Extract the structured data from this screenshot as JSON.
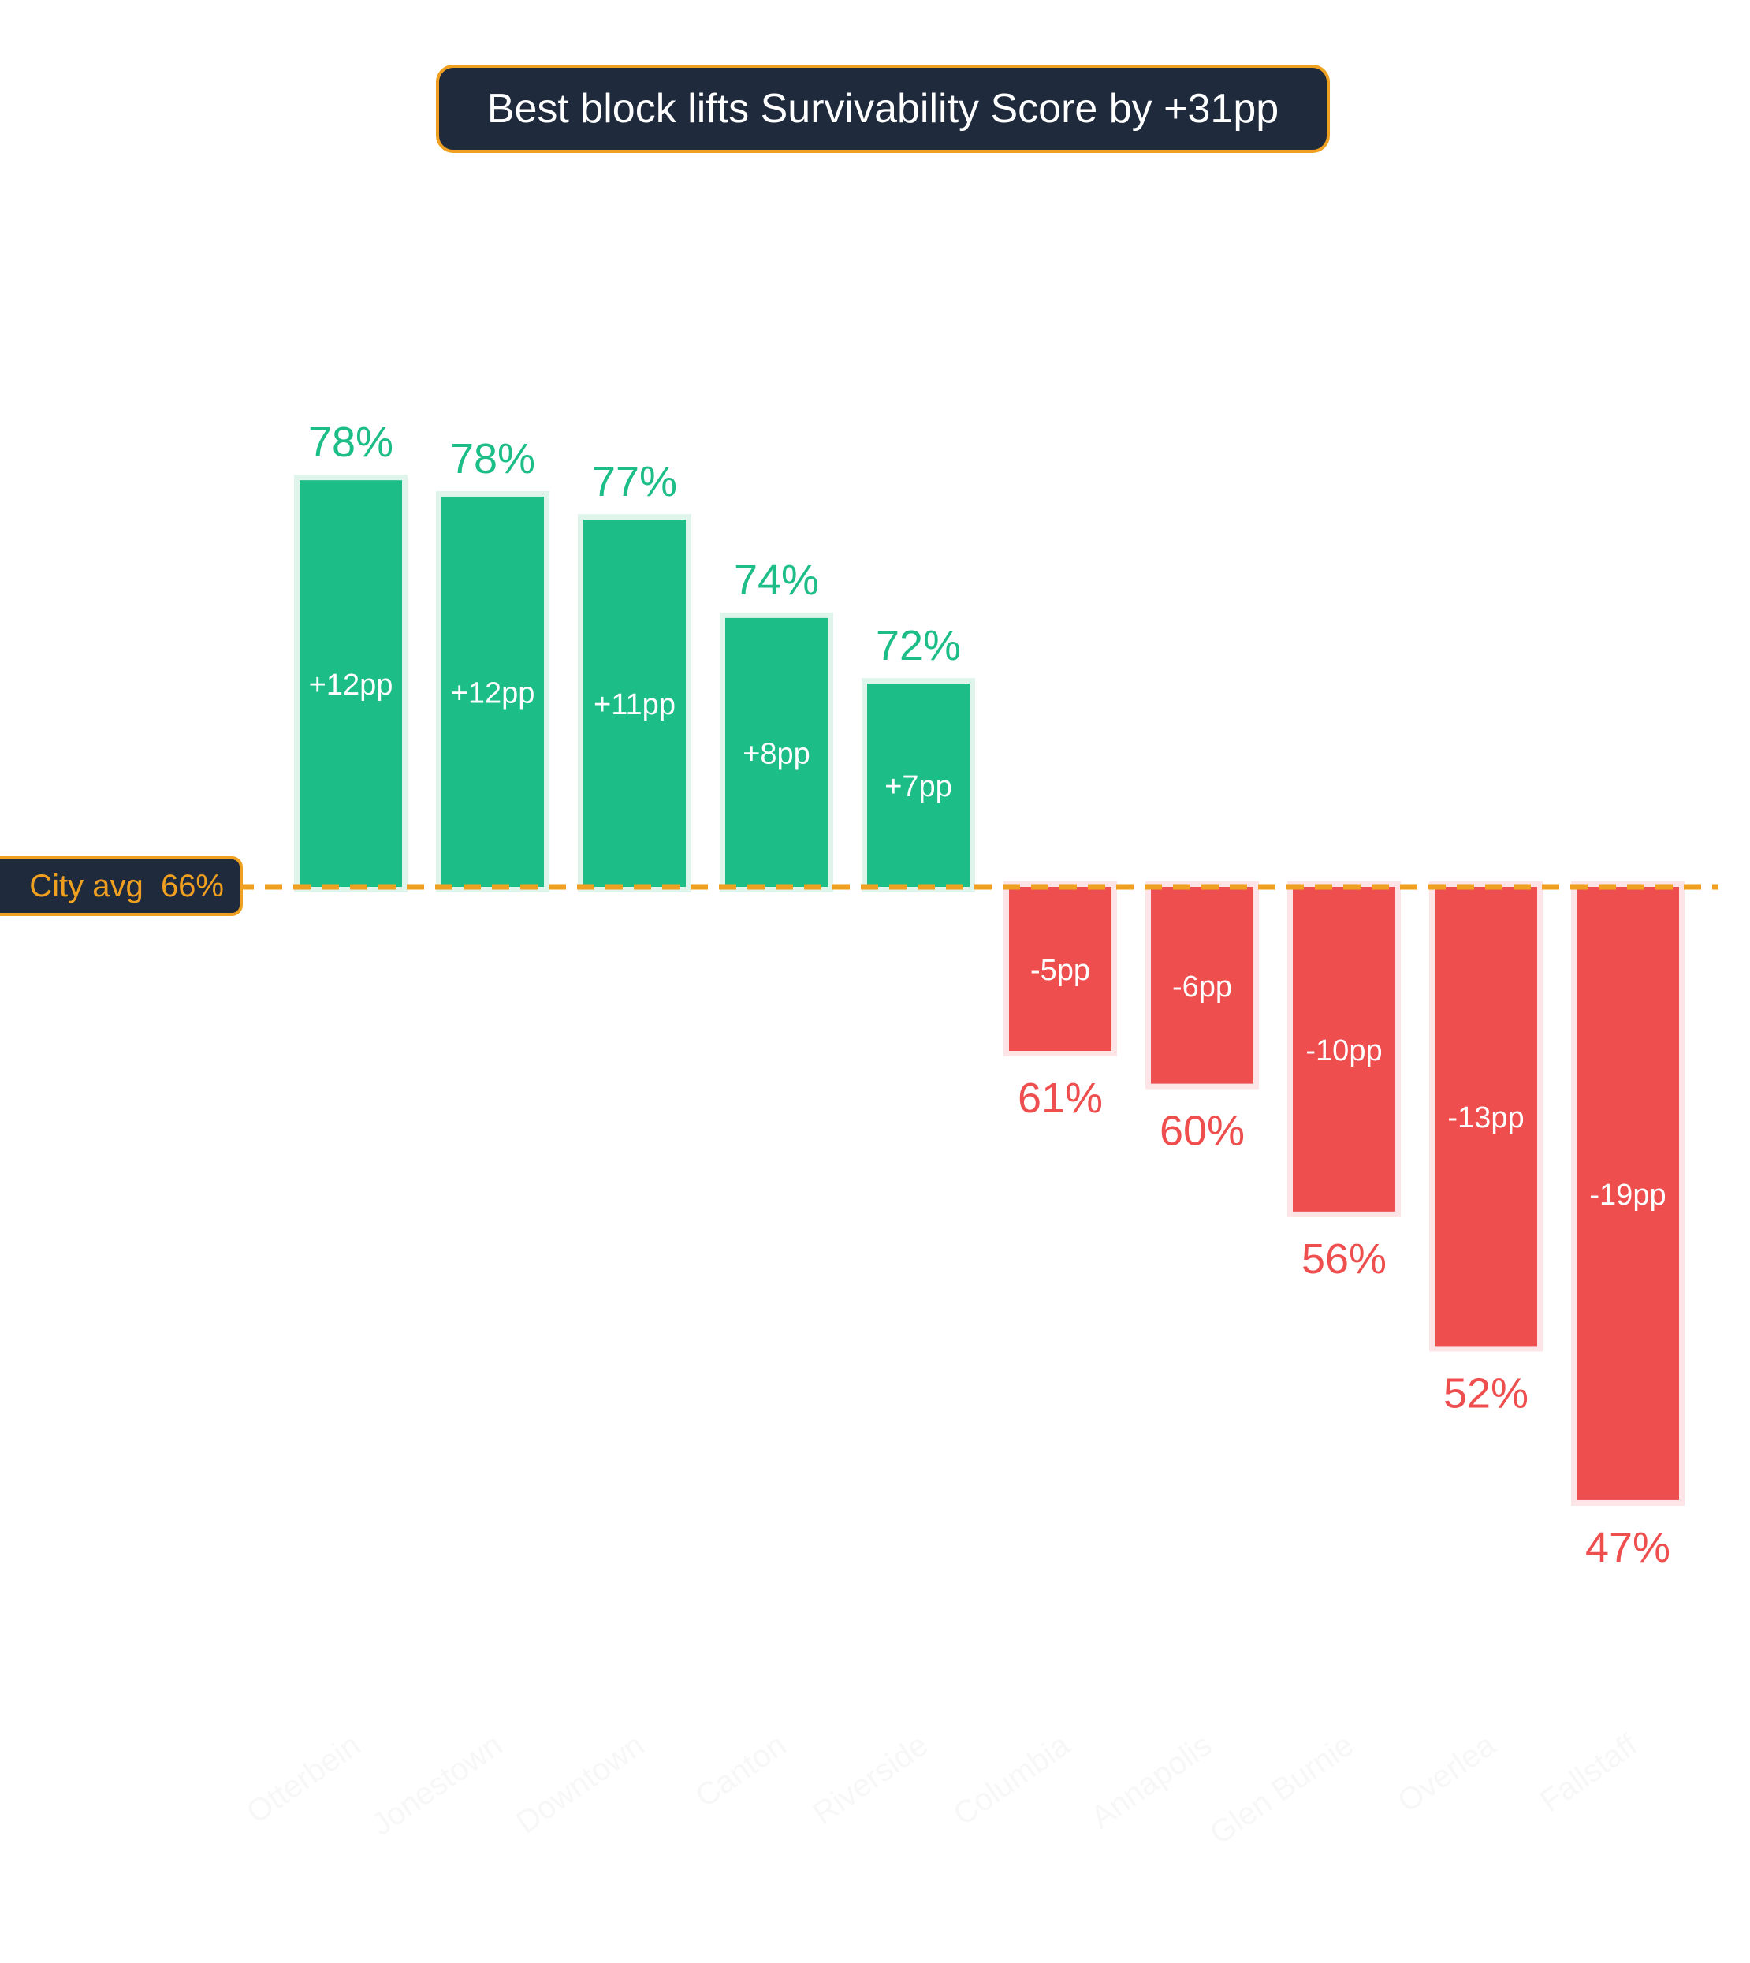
{
  "chart_data": {
    "type": "bar",
    "title": "Best block lifts Survivability Score by +31pp",
    "reference_line": {
      "label": "City avg",
      "value": 66,
      "value_label": "66%"
    },
    "categories": [
      "Otterbein",
      "Jonestown",
      "Downtown",
      "Canton",
      "Riverside",
      "Columbia",
      "Annapolis",
      "Glen Burnie",
      "Overlea",
      "Fallstaff"
    ],
    "values": [
      78.4,
      77.9,
      77.2,
      74.2,
      72.2,
      61.0,
      60.0,
      56.1,
      52.0,
      47.3
    ],
    "value_labels": [
      "78%",
      "78%",
      "77%",
      "74%",
      "72%",
      "61%",
      "60%",
      "56%",
      "52%",
      "47%"
    ],
    "delta_labels": [
      "+12pp",
      "+12pp",
      "+11pp",
      "+8pp",
      "+7pp",
      "-5pp",
      "-6pp",
      "-10pp",
      "-13pp",
      "-19pp"
    ],
    "colors": {
      "above": "#1dbd87",
      "above_halo": "#dff5ec",
      "below": "#ef4e4e",
      "below_halo": "#fde4e6",
      "reference": "#f0a020",
      "category_labels": "#f7f7f7"
    },
    "grid": false
  }
}
